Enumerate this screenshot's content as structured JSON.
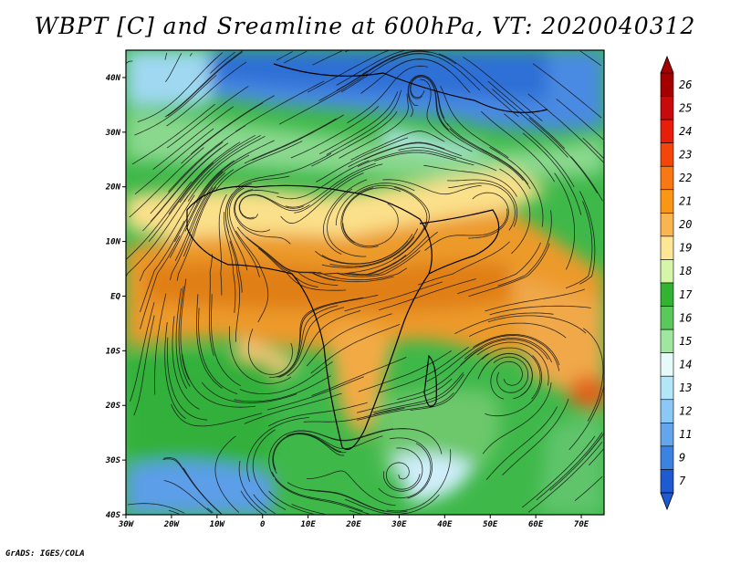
{
  "title": "WBPT [C] and Sreamline at 600hPa, VT: 2020040312",
  "footer": "GrADS: IGES/COLA",
  "map": {
    "lat_labels": [
      "40N",
      "30N",
      "20N",
      "10N",
      "EQ",
      "10S",
      "20S",
      "30S",
      "40S"
    ],
    "lon_labels": [
      "30W",
      "20W",
      "10W",
      "0",
      "10E",
      "20E",
      "30E",
      "40E",
      "50E",
      "60E",
      "70E"
    ],
    "lat_range": [
      -40,
      45
    ],
    "lon_range": [
      -30,
      75
    ]
  },
  "colorbar": {
    "labels": [
      "26",
      "25",
      "24",
      "23",
      "22",
      "21",
      "20",
      "19",
      "18",
      "17",
      "16",
      "15",
      "14",
      "13",
      "12",
      "11",
      "9",
      "7"
    ],
    "colors": [
      "#a50000",
      "#c80a0a",
      "#e61e0a",
      "#f5460a",
      "#fa7814",
      "#fa9614",
      "#fab450",
      "#fde694",
      "#d6f5a8",
      "#32b432",
      "#5ac85a",
      "#a0e6a0",
      "#e6fafa",
      "#b4e6fa",
      "#8cc8f5",
      "#64a5ec",
      "#3c82e1",
      "#1e5ad2"
    ]
  },
  "regions": {
    "cold_north": "#3c82e1",
    "cool_north": "#8cc8f5",
    "mid_green": "#32b432",
    "light_green": "#a0e6a0",
    "warm_band": "#fab450",
    "orange_band": "#e68a1e",
    "yellow_band": "#fde694",
    "south_blue": "#64a5ec"
  }
}
